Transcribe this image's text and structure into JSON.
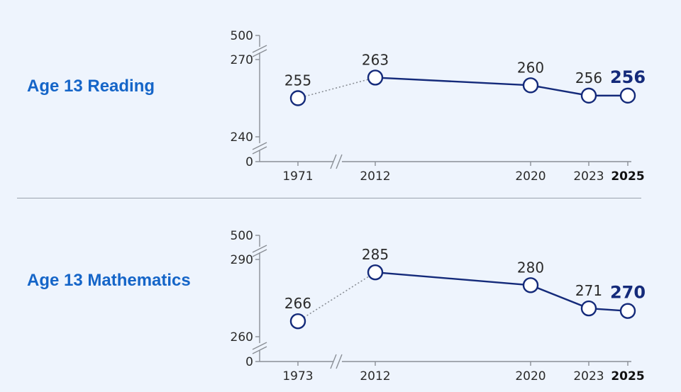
{
  "chart_data": [
    {
      "type": "line",
      "title": "Age 13 Reading",
      "x": [
        "1971",
        "2012",
        "2020",
        "2023",
        "2025"
      ],
      "values": [
        255,
        263,
        260,
        256,
        256
      ],
      "yticks": [
        "500",
        "270",
        "240",
        "0"
      ],
      "ylim": [
        240,
        270
      ],
      "y_axis_breaks": true,
      "x_axis_break_after": "1971",
      "dotted_segment": [
        "1971",
        "2012"
      ],
      "highlight": "2025",
      "colors": {
        "line": "#142a7a",
        "dotted": "#8a8f96",
        "label": "#1565c8"
      }
    },
    {
      "type": "line",
      "title": "Age 13 Mathematics",
      "x": [
        "1973",
        "2012",
        "2020",
        "2023",
        "2025"
      ],
      "values": [
        266,
        285,
        280,
        271,
        270
      ],
      "yticks": [
        "500",
        "290",
        "260",
        "0"
      ],
      "ylim": [
        260,
        290
      ],
      "y_axis_breaks": true,
      "x_axis_break_after": "1973",
      "dotted_segment": [
        "1973",
        "2012"
      ],
      "highlight": "2025",
      "colors": {
        "line": "#142a7a",
        "dotted": "#8a8f96",
        "label": "#1565c8"
      }
    }
  ]
}
